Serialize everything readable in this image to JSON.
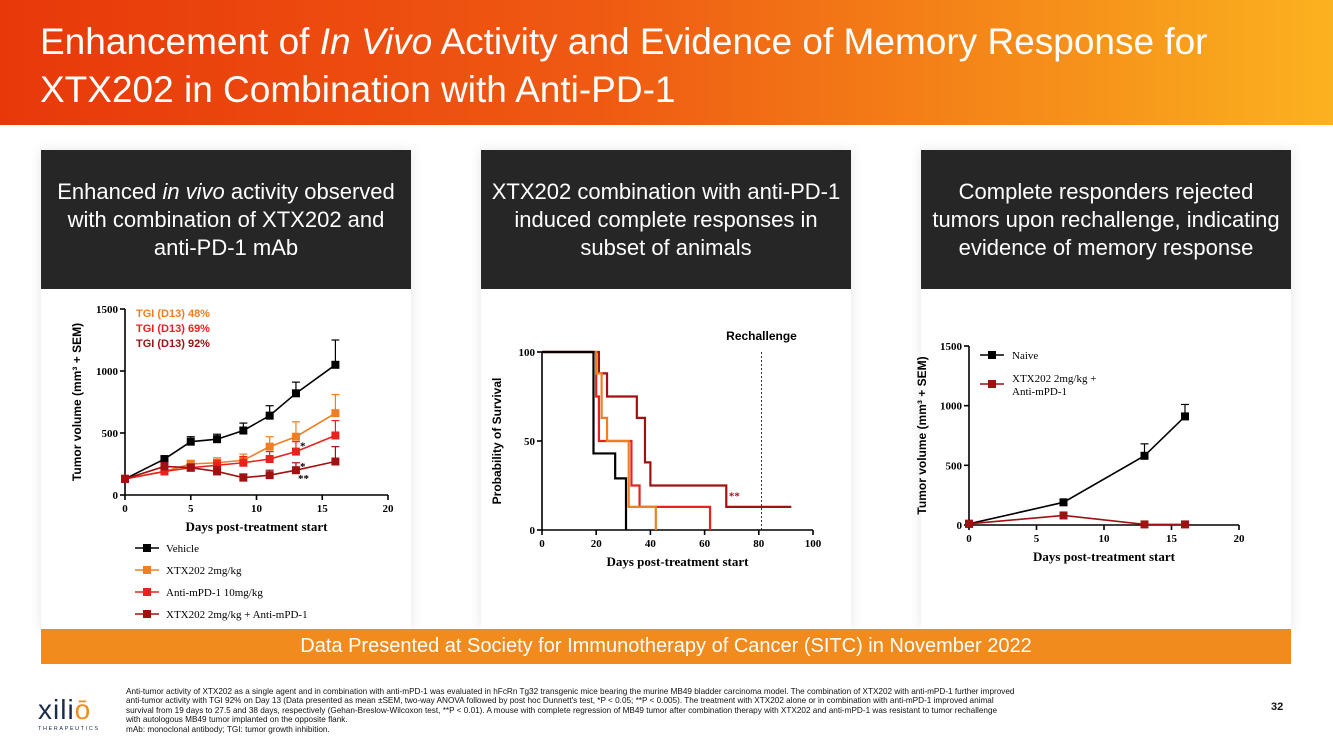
{
  "header": {
    "title_part1": "Enhancement of ",
    "title_italic": "In Vivo",
    "title_part2": " Activity and Evidence of Memory Response for XTX202 in Combination with Anti-PD-1"
  },
  "panels": [
    {
      "title_a": "Enhanced ",
      "title_italic": "in vivo",
      "title_b": " activity observed",
      "title_c": "with combination of XTX202 and anti-PD-1 mAb"
    },
    {
      "title": "XTX202 combination with anti-PD-1 induced complete responses in subset of animals"
    },
    {
      "title": "Complete responders rejected tumors upon rechallenge, indicating evidence of memory response"
    }
  ],
  "banner": "Data Presented at Society for Immunotherapy of Cancer (SITC) in November 2022",
  "footnote": {
    "line1": "Anti-tumor activity of XTX202 as a single agent and in combination with anti-mPD-1 was evaluated in hFcRn Tg32 transgenic mice bearing the murine MB49 bladder carcinoma model. The combination of XTX202 with anti-mPD-1 further improved",
    "line2": "anti-tumor activity with TGI 92% on Day 13 (Data presented as mean ±SEM, two-way ANOVA followed by post hoc Dunnett's test, *P < 0.05; **P < 0.005). The treatment with XTX202 alone or in combination with anti-mPD-1 improved animal",
    "line3": "survival from 19 days to 27.5 and 38 days, respectively (Gehan-Breslow-Wilcoxon test, **P < 0.01). A mouse with complete regression of MB49 tumor after combination therapy with XTX202 and anti-mPD-1 was resistant to tumor rechallenge",
    "line4": "with autologous MB49 tumor implanted on the opposite flank.",
    "line5": "mAb: monoclonal antibody; TGI: tumor growth inhibition."
  },
  "page_number": "32",
  "logo": {
    "word_a": "xili",
    "word_o": "ō",
    "sub": "THERAPEUTICS"
  },
  "colors": {
    "vehicle": "#000000",
    "xtx": "#f07e22",
    "antipd1": "#e8231f",
    "combo": "#a01212"
  },
  "chart_data": [
    {
      "type": "line",
      "xlabel": "Days post-treatment start",
      "ylabel": "Tumor volume (mm³ + SEM)",
      "xlim": [
        0,
        20
      ],
      "ylim": [
        0,
        1500
      ],
      "xticks": [
        "0",
        "5",
        "10",
        "15",
        "20"
      ],
      "yticks": [
        "0",
        "500",
        "1000",
        "1500"
      ],
      "annotations": [
        "TGI (D13) 48%",
        "TGI (D13) 69%",
        "TGI (D13) 92%"
      ],
      "sig_marks": [
        "*",
        "*",
        "**"
      ],
      "series": [
        {
          "name": "Vehicle",
          "color": "#000000",
          "x": [
            0,
            3,
            5,
            7,
            9,
            11,
            13,
            16
          ],
          "y": [
            130,
            290,
            430,
            450,
            520,
            640,
            820,
            1050
          ],
          "err": [
            15,
            20,
            40,
            40,
            60,
            80,
            90,
            200
          ]
        },
        {
          "name": "XTX202 2mg/kg",
          "color": "#f07e22",
          "x": [
            0,
            3,
            5,
            7,
            9,
            11,
            13,
            16
          ],
          "y": [
            130,
            190,
            250,
            260,
            280,
            390,
            470,
            660
          ],
          "err": [
            15,
            20,
            30,
            40,
            50,
            80,
            120,
            150
          ]
        },
        {
          "name": "Anti-mPD-1 10mg/kg",
          "color": "#e8231f",
          "x": [
            0,
            3,
            5,
            7,
            9,
            11,
            13,
            16
          ],
          "y": [
            130,
            190,
            220,
            240,
            260,
            290,
            350,
            480
          ],
          "err": [
            15,
            20,
            30,
            40,
            50,
            60,
            80,
            120
          ]
        },
        {
          "name": "XTX202 2mg/kg + Anti-mPD-1",
          "color": "#a01212",
          "x": [
            0,
            3,
            5,
            7,
            9,
            11,
            13,
            16
          ],
          "y": [
            130,
            230,
            220,
            190,
            140,
            160,
            200,
            270
          ],
          "err": [
            15,
            30,
            30,
            40,
            30,
            40,
            60,
            120
          ]
        }
      ]
    },
    {
      "type": "line",
      "subtype": "kaplan-meier",
      "xlabel": "Days post-treatment start",
      "ylabel": "Probability of Survival",
      "xlim": [
        0,
        100
      ],
      "ylim": [
        0,
        100
      ],
      "xticks": [
        "0",
        "20",
        "40",
        "60",
        "80",
        "100"
      ],
      "yticks": [
        "0",
        "50",
        "100"
      ],
      "rechallenge_label": "Rechallenge",
      "rechallenge_day": 81,
      "sig_mark": "**",
      "series": [
        {
          "name": "Vehicle",
          "color": "#000000",
          "x": [
            0,
            19,
            19,
            27,
            27,
            31,
            31
          ],
          "y": [
            100,
            100,
            43,
            43,
            29,
            29,
            0
          ]
        },
        {
          "name": "XTX202 2mg/kg",
          "color": "#f07e22",
          "x": [
            0,
            20,
            20,
            22,
            22,
            24,
            24,
            32,
            32,
            42,
            42
          ],
          "y": [
            100,
            100,
            88,
            88,
            63,
            63,
            50,
            50,
            13,
            13,
            0
          ]
        },
        {
          "name": "Anti-mPD-1 10mg/kg",
          "color": "#e8231f",
          "x": [
            0,
            20,
            20,
            21,
            21,
            33,
            33,
            36,
            36,
            62,
            62
          ],
          "y": [
            100,
            100,
            75,
            75,
            50,
            50,
            25,
            25,
            13,
            13,
            0
          ]
        },
        {
          "name": "XTX202 2mg/kg + Anti-mPD-1",
          "color": "#a01212",
          "x": [
            0,
            21,
            21,
            24,
            24,
            35,
            35,
            38,
            38,
            40,
            40,
            68,
            68,
            92
          ],
          "y": [
            100,
            100,
            88,
            88,
            75,
            75,
            63,
            63,
            38,
            38,
            25,
            25,
            13,
            13
          ]
        }
      ]
    },
    {
      "type": "line",
      "xlabel": "Days post-treatment start",
      "ylabel": "Tumor volume (mm³ + SEM)",
      "xlim": [
        0,
        20
      ],
      "ylim": [
        0,
        1500
      ],
      "xticks": [
        "0",
        "5",
        "10",
        "15",
        "20"
      ],
      "yticks": [
        "0",
        "500",
        "1000",
        "1500"
      ],
      "series": [
        {
          "name": "Naive",
          "color": "#000000",
          "x": [
            0,
            7,
            13,
            16
          ],
          "y": [
            10,
            190,
            580,
            910
          ],
          "err": [
            0,
            20,
            100,
            100
          ]
        },
        {
          "name": "XTX202 2mg/kg + Anti-mPD-1",
          "name_line1": "XTX202 2mg/kg +",
          "name_line2": "Anti-mPD-1",
          "color": "#a01212",
          "x": [
            0,
            7,
            13,
            16
          ],
          "y": [
            10,
            80,
            5,
            5
          ],
          "err": [
            0,
            5,
            0,
            0
          ]
        }
      ]
    }
  ]
}
